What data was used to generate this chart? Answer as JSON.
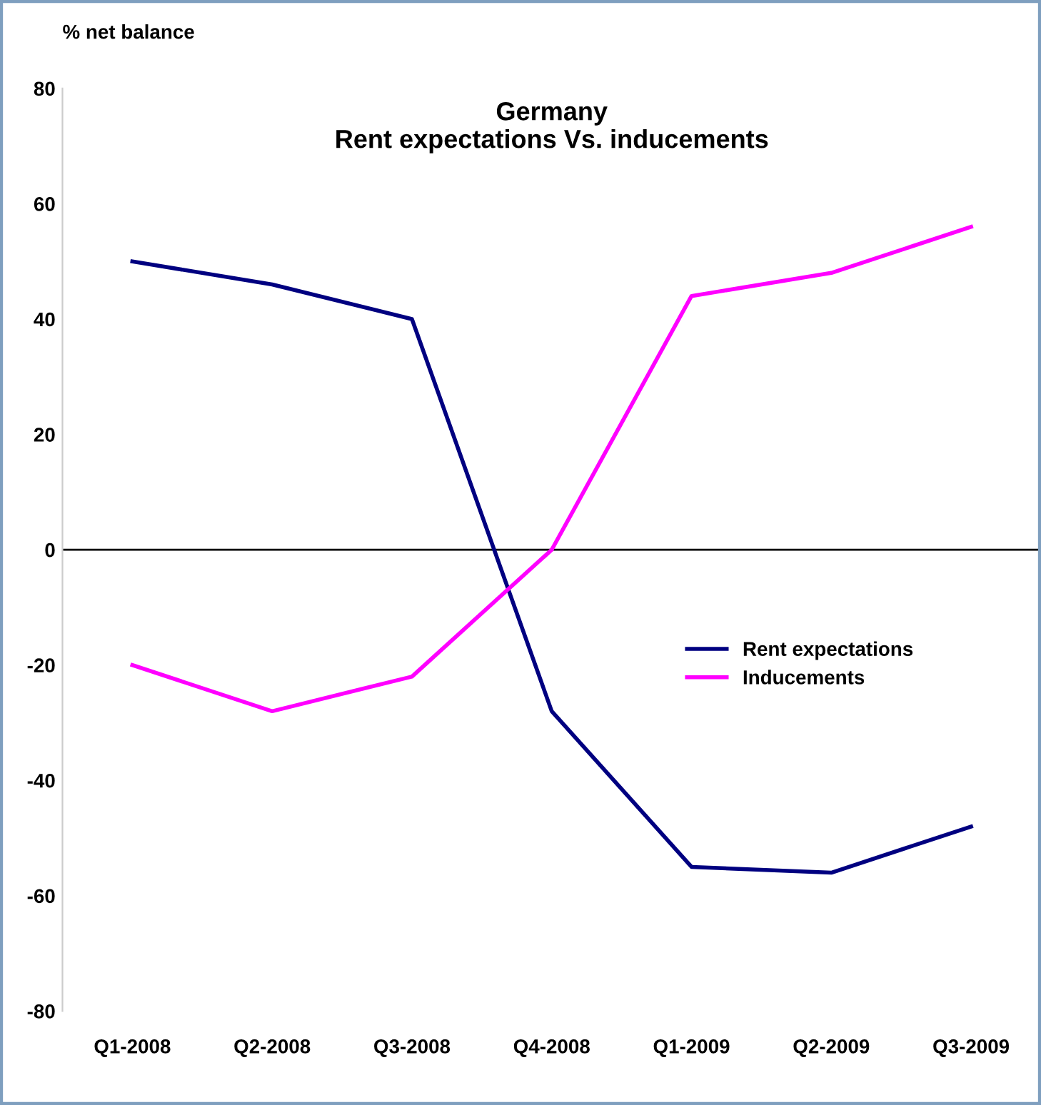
{
  "chart_data": {
    "type": "line",
    "title": "Germany\nRent expectations Vs. inducements",
    "ylabel": "% net balance",
    "categories": [
      "Q1-2008",
      "Q2-2008",
      "Q3-2008",
      "Q4-2008",
      "Q1-2009",
      "Q2-2009",
      "Q3-2009"
    ],
    "series": [
      {
        "name": "Rent expectations",
        "color": "#000080",
        "values": [
          50,
          46,
          40,
          -28,
          -55,
          -56,
          -48
        ]
      },
      {
        "name": "Inducements",
        "color": "#ff00ff",
        "values": [
          -20,
          -28,
          -22,
          0,
          44,
          48,
          56
        ]
      }
    ],
    "ylim": [
      -80,
      80
    ],
    "yticks": [
      -80,
      -60,
      -40,
      -20,
      0,
      20,
      40,
      60,
      80
    ],
    "ref_lines": [
      {
        "axis": "y",
        "value": 0,
        "color": "#000000"
      }
    ],
    "grid": false,
    "legend": "right",
    "marker": "none",
    "line_style": "solid"
  }
}
